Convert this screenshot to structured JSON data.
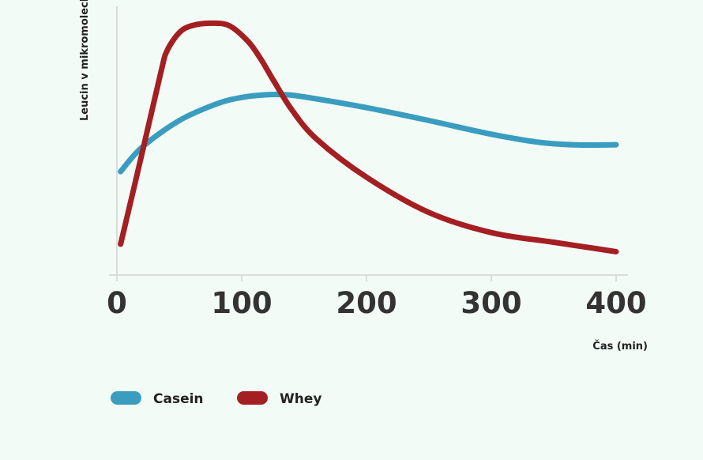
{
  "chart_data": {
    "type": "line",
    "title": "",
    "xlabel": "Čas (min)",
    "ylabel": "Leucin v mikromolech",
    "xlim": [
      0,
      400
    ],
    "ylim": [
      0,
      100
    ],
    "xticks": [
      0,
      100,
      200,
      300,
      400
    ],
    "x_tick_labels": [
      "0",
      "100",
      "200",
      "300",
      "400"
    ],
    "y_tick_labels_shown": false,
    "grid": false,
    "legend_position": "bottom-left",
    "series": [
      {
        "name": "Casein",
        "color": "#3a9dbf",
        "x": [
          3,
          20,
          50,
          80,
          100,
          120,
          135,
          150,
          200,
          250,
          300,
          340,
          370,
          400
        ],
        "y": [
          38.5,
          47.5,
          57.5,
          63.7,
          66.1,
          67.1,
          67.1,
          66.3,
          62.3,
          57.5,
          52.4,
          49.3,
          48.4,
          48.5
        ]
      },
      {
        "name": "Whey",
        "color": "#a41f22",
        "x": [
          3,
          20,
          35,
          40,
          50,
          60,
          75,
          90,
          105,
          115,
          125,
          140,
          160,
          200,
          250,
          300,
          350,
          400
        ],
        "y": [
          11.5,
          45,
          75,
          83.3,
          90.2,
          92.8,
          93.7,
          92.8,
          87,
          80.6,
          72.8,
          61.6,
          50.6,
          36.4,
          23.3,
          15.8,
          12.2,
          8.7
        ]
      }
    ]
  }
}
